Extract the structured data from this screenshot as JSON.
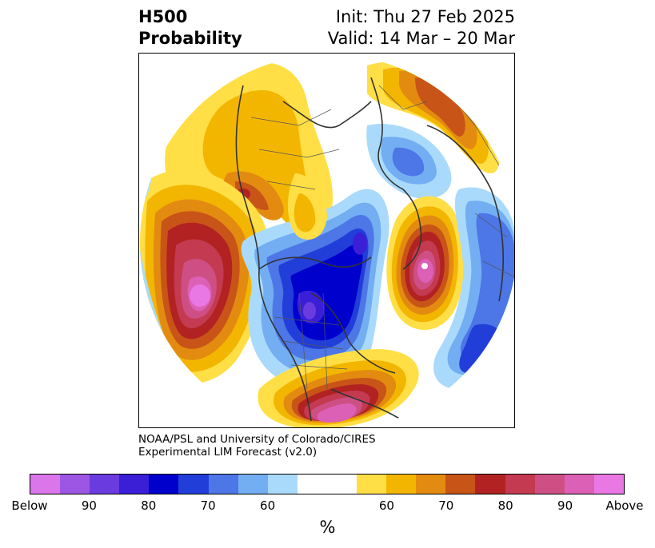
{
  "title": {
    "left_line1": "H500",
    "left_line2": "Probability",
    "right_line1": "Init: Thu 27 Feb 2025",
    "right_line2": "Valid: 14 Mar – 20 Mar"
  },
  "credit": {
    "line1": "NOAA/PSL and University of Colorado/CIRES",
    "line2": "Experimental LIM Forecast (v2.0)"
  },
  "colorbar": {
    "unit_label": "%",
    "colors": [
      "#da76ea",
      "#9d56e3",
      "#6a3ce0",
      "#3a1fd6",
      "#0000cd",
      "#223ed9",
      "#4d76e6",
      "#73aef2",
      "#aadafb",
      "#ffffff",
      "#ffffff",
      "#ffdf45",
      "#f3b600",
      "#e38b10",
      "#c85418",
      "#b22222",
      "#c33a51",
      "#ce4f84",
      "#dc60b5",
      "#e977e4"
    ],
    "tick_labels": [
      "Below",
      "90",
      "80",
      "70",
      "60",
      "60",
      "70",
      "80",
      "90",
      "Above"
    ]
  },
  "map_legend_colors": {
    "above": [
      "#ffdf45",
      "#f3b600",
      "#e38b10",
      "#c85418",
      "#b22222",
      "#c33a51",
      "#ce4f84",
      "#dc60b5",
      "#e977e4"
    ],
    "below": [
      "#aadafb",
      "#73aef2",
      "#4d76e6",
      "#223ed9",
      "#0000cd",
      "#3a1fd6",
      "#6a3ce0"
    ]
  }
}
